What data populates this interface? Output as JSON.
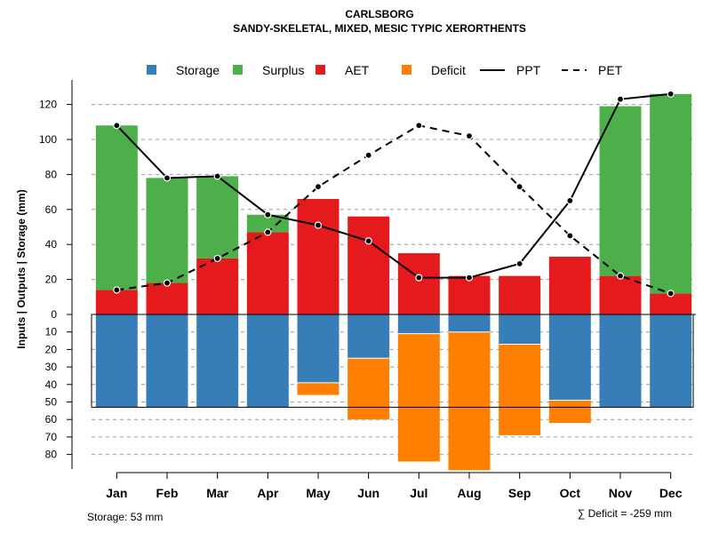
{
  "chart_data": {
    "type": "bar",
    "title": "CARLSBORG",
    "subtitle": "SANDY-SKELETAL, MIXED, MESIC TYPIC XERORTHENTS",
    "ylabel": "Inputs | Outputs | Storage    (mm)",
    "categories": [
      "Jan",
      "Feb",
      "Mar",
      "Apr",
      "May",
      "Jun",
      "Jul",
      "Aug",
      "Sep",
      "Oct",
      "Nov",
      "Dec"
    ],
    "ylim_top": [
      0,
      130
    ],
    "ylim_bottom": [
      0,
      90
    ],
    "upper_ticks": [
      "0",
      "20",
      "40",
      "60",
      "80",
      "100",
      "120"
    ],
    "lower_ticks": [
      "10",
      "20",
      "30",
      "40",
      "50",
      "60",
      "70",
      "80"
    ],
    "series": [
      {
        "name": "AET",
        "color": "#E41A1C",
        "values": [
          14,
          18,
          32,
          47,
          66,
          56,
          35,
          22,
          22,
          33,
          22,
          12
        ]
      },
      {
        "name": "Surplus",
        "color": "#4DAF4A",
        "values": [
          94,
          60,
          47,
          10,
          0,
          0,
          0,
          0,
          0,
          0,
          97,
          114
        ]
      },
      {
        "name": "Storage",
        "color": "#377EB8",
        "values": [
          53,
          53,
          53,
          53,
          39,
          25,
          11,
          10,
          17,
          49,
          53,
          53
        ]
      },
      {
        "name": "Deficit",
        "color": "#FF7F00",
        "values": [
          0,
          0,
          0,
          0,
          7,
          35,
          73,
          79,
          52,
          13,
          0,
          0
        ]
      },
      {
        "name": "PPT",
        "color": "#000000",
        "values": [
          108,
          78,
          79,
          57,
          51,
          42,
          21,
          21,
          29,
          65,
          123,
          126
        ]
      },
      {
        "name": "PET",
        "color": "#000000",
        "values": [
          14,
          18,
          32,
          47,
          73,
          91,
          108,
          102,
          73,
          45,
          22,
          12
        ]
      }
    ],
    "storage_capacity": 53,
    "legend": {
      "position": "top",
      "items": [
        {
          "label": "Storage",
          "color": "#377EB8",
          "kind": "box"
        },
        {
          "label": "Surplus",
          "color": "#4DAF4A",
          "kind": "box"
        },
        {
          "label": "AET",
          "color": "#E41A1C",
          "kind": "box"
        },
        {
          "label": "Deficit",
          "color": "#FF7F00",
          "kind": "box"
        },
        {
          "label": "PPT",
          "color": "#000000",
          "kind": "solid"
        },
        {
          "label": "PET",
          "color": "#000000",
          "kind": "dashed"
        }
      ]
    },
    "storage_note": "Storage: 53 mm",
    "deficit_note": "∑ Deficit = -259 mm"
  }
}
